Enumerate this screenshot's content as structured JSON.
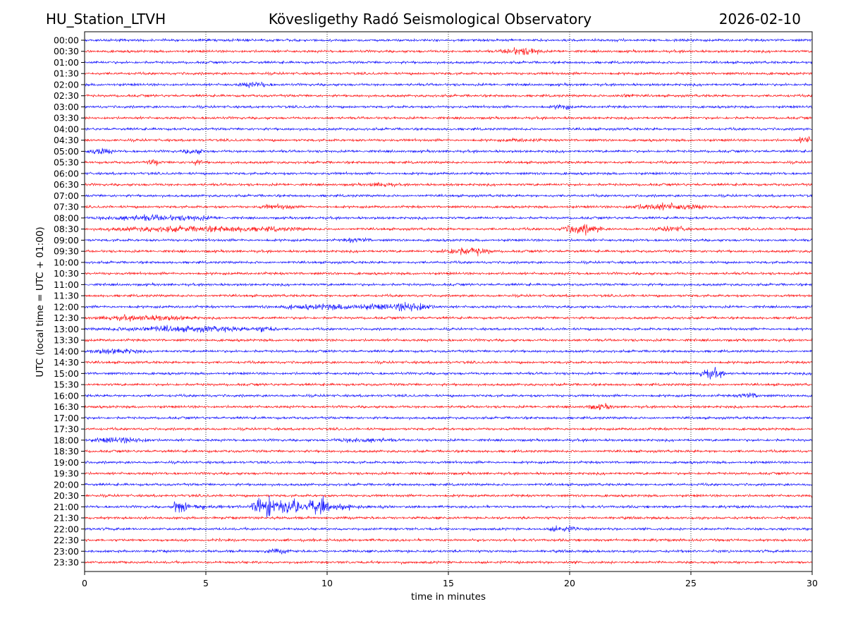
{
  "header": {
    "station": "HU_Station_LTVH",
    "observatory": "Kövesligethy Radó Seismological Observatory",
    "date": "2026-02-10"
  },
  "chart_data": {
    "type": "line",
    "title": "Kövesligethy Radó Seismological Observatory",
    "xlabel": "time in minutes",
    "ylabel": "UTC (local time = UTC + 01:00)",
    "xlim": [
      0,
      30
    ],
    "x_ticks": [
      "0",
      "5",
      "10",
      "15",
      "20",
      "25",
      "30"
    ],
    "x_tick_values": [
      0,
      5,
      10,
      15,
      20,
      25,
      30
    ],
    "grid": "vertical dotted",
    "row_labels": [
      "00:00",
      "00:30",
      "01:00",
      "01:30",
      "02:00",
      "02:30",
      "03:00",
      "03:30",
      "04:00",
      "04:30",
      "05:00",
      "05:30",
      "06:00",
      "06:30",
      "07:00",
      "07:30",
      "08:00",
      "08:30",
      "09:00",
      "09:30",
      "10:00",
      "10:30",
      "11:00",
      "11:30",
      "12:00",
      "12:30",
      "13:00",
      "13:30",
      "14:00",
      "14:30",
      "15:00",
      "15:30",
      "16:00",
      "16:30",
      "17:00",
      "17:30",
      "18:00",
      "18:30",
      "19:00",
      "19:30",
      "20:00",
      "20:30",
      "21:00",
      "21:30",
      "22:00",
      "22:30",
      "23:00",
      "23:30"
    ],
    "series_colors": [
      "#0000ff",
      "#ff0000"
    ],
    "bursts": [
      {
        "row": "00:30",
        "start": 17.0,
        "end": 19.0,
        "amp": 4
      },
      {
        "row": "02:00",
        "start": 6.2,
        "end": 7.8,
        "amp": 3
      },
      {
        "row": "02:30",
        "start": 21.8,
        "end": 22.8,
        "amp": 2.5
      },
      {
        "row": "03:00",
        "start": 19.2,
        "end": 20.2,
        "amp": 3
      },
      {
        "row": "04:30",
        "start": 17.0,
        "end": 19.0,
        "amp": 2
      },
      {
        "row": "04:30",
        "start": 29.4,
        "end": 30.0,
        "amp": 4
      },
      {
        "row": "05:00",
        "start": 0.0,
        "end": 1.3,
        "amp": 3.5
      },
      {
        "row": "05:00",
        "start": 4.0,
        "end": 5.0,
        "amp": 3
      },
      {
        "row": "05:30",
        "start": 2.5,
        "end": 3.2,
        "amp": 3
      },
      {
        "row": "05:30",
        "start": 4.3,
        "end": 5.0,
        "amp": 3
      },
      {
        "row": "06:30",
        "start": 11.5,
        "end": 13.0,
        "amp": 2.5
      },
      {
        "row": "07:30",
        "start": 7.0,
        "end": 9.0,
        "amp": 2.5
      },
      {
        "row": "07:30",
        "start": 22.0,
        "end": 26.0,
        "amp": 3.5
      },
      {
        "row": "08:00",
        "start": 0.0,
        "end": 6.0,
        "amp": 3
      },
      {
        "row": "08:30",
        "start": 0.0,
        "end": 10.0,
        "amp": 3
      },
      {
        "row": "08:30",
        "start": 19.5,
        "end": 21.5,
        "amp": 5
      },
      {
        "row": "08:30",
        "start": 23.5,
        "end": 25.0,
        "amp": 3
      },
      {
        "row": "09:00",
        "start": 10.5,
        "end": 12.0,
        "amp": 2.5
      },
      {
        "row": "09:30",
        "start": 14.5,
        "end": 17.0,
        "amp": 4
      },
      {
        "row": "12:00",
        "start": 7.0,
        "end": 15.0,
        "amp": 3
      },
      {
        "row": "12:00",
        "start": 12.5,
        "end": 14.5,
        "amp": 5
      },
      {
        "row": "12:30",
        "start": 0.0,
        "end": 5.0,
        "amp": 3
      },
      {
        "row": "13:00",
        "start": 0.0,
        "end": 8.0,
        "amp": 3
      },
      {
        "row": "13:00",
        "start": 7.0,
        "end": 8.0,
        "amp": 4
      },
      {
        "row": "14:00",
        "start": 0.0,
        "end": 2.5,
        "amp": 3
      },
      {
        "row": "15:00",
        "start": 25.2,
        "end": 26.5,
        "amp": 5
      },
      {
        "row": "16:00",
        "start": 26.8,
        "end": 28.0,
        "amp": 3
      },
      {
        "row": "16:30",
        "start": 20.5,
        "end": 22.0,
        "amp": 3
      },
      {
        "row": "18:00",
        "start": 0.0,
        "end": 3.0,
        "amp": 3
      },
      {
        "row": "18:00",
        "start": 10.0,
        "end": 13.0,
        "amp": 2.5
      },
      {
        "row": "22:00",
        "start": 19.0,
        "end": 20.5,
        "amp": 3
      },
      {
        "row": "23:00",
        "start": 7.3,
        "end": 8.6,
        "amp": 2.5
      }
    ],
    "earthquake": {
      "row": "21:00",
      "segments": [
        {
          "start": 3.7,
          "end": 4.2,
          "amp": 14
        },
        {
          "start": 4.2,
          "end": 6.9,
          "amp": 3
        },
        {
          "start": 6.9,
          "end": 10.2,
          "amp": 14
        },
        {
          "start": 10.2,
          "end": 11.5,
          "amp": 5
        },
        {
          "start": 11.5,
          "end": 14.0,
          "amp": 2
        }
      ]
    }
  }
}
